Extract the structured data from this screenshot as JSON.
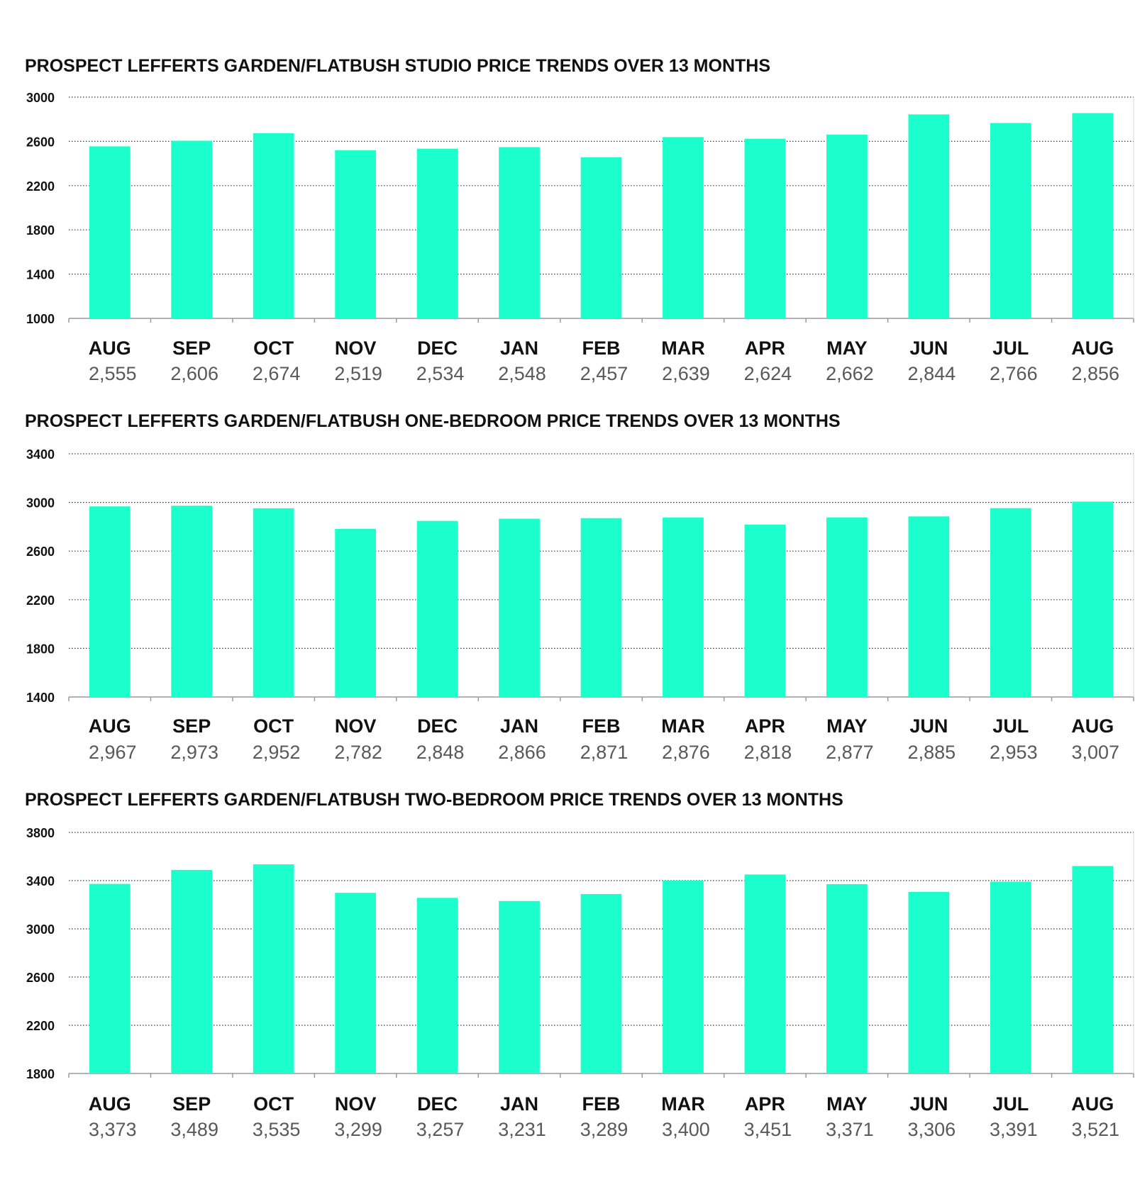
{
  "colors": {
    "bar": "#1cffcd",
    "grid": "#3a3a3a",
    "axis": "#9a9a9a",
    "title": "#111111",
    "value_label": "#595959"
  },
  "chart_data": [
    {
      "type": "bar",
      "title": "PROSPECT LEFFERTS GARDEN/FLATBUSH STUDIO PRICE TRENDS OVER 13 MONTHS",
      "categories": [
        "AUG",
        "SEP",
        "OCT",
        "NOV",
        "DEC",
        "JAN",
        "FEB",
        "MAR",
        "APR",
        "MAY",
        "JUN",
        "JUL",
        "AUG"
      ],
      "values": [
        2555,
        2606,
        2674,
        2519,
        2534,
        2548,
        2457,
        2639,
        2624,
        2662,
        2844,
        2766,
        2856
      ],
      "value_labels": [
        "2,555",
        "2,606",
        "2,674",
        "2,519",
        "2,534",
        "2,548",
        "2,457",
        "2,639",
        "2,624",
        "2,662",
        "2,844",
        "2,766",
        "2,856"
      ],
      "ylim": [
        1000,
        3000
      ],
      "yticks": [
        1000,
        1400,
        1800,
        2200,
        2600,
        3000
      ],
      "grid": true,
      "grid_style": "dotted"
    },
    {
      "type": "bar",
      "title": "PROSPECT LEFFERTS GARDEN/FLATBUSH ONE-BEDROOM PRICE TRENDS OVER 13 MONTHS",
      "categories": [
        "AUG",
        "SEP",
        "OCT",
        "NOV",
        "DEC",
        "JAN",
        "FEB",
        "MAR",
        "APR",
        "MAY",
        "JUN",
        "JUL",
        "AUG"
      ],
      "values": [
        2967,
        2973,
        2952,
        2782,
        2848,
        2866,
        2871,
        2876,
        2818,
        2877,
        2885,
        2953,
        3007
      ],
      "value_labels": [
        "2,967",
        "2,973",
        "2,952",
        "2,782",
        "2,848",
        "2,866",
        "2,871",
        "2,876",
        "2,818",
        "2,877",
        "2,885",
        "2,953",
        "3,007"
      ],
      "ylim": [
        1400,
        3400
      ],
      "yticks": [
        1400,
        1800,
        2200,
        2600,
        3000,
        3400
      ],
      "grid": true,
      "grid_style": "dotted"
    },
    {
      "type": "bar",
      "title": "PROSPECT LEFFERTS GARDEN/FLATBUSH TWO-BEDROOM PRICE TRENDS OVER 13 MONTHS",
      "categories": [
        "AUG",
        "SEP",
        "OCT",
        "NOV",
        "DEC",
        "JAN",
        "FEB",
        "MAR",
        "APR",
        "MAY",
        "JUN",
        "JUL",
        "AUG"
      ],
      "values": [
        3373,
        3489,
        3535,
        3299,
        3257,
        3231,
        3289,
        3400,
        3451,
        3371,
        3306,
        3391,
        3521
      ],
      "value_labels": [
        "3,373",
        "3,489",
        "3,535",
        "3,299",
        "3,257",
        "3,231",
        "3,289",
        "3,400",
        "3,451",
        "3,371",
        "3,306",
        "3,391",
        "3,521"
      ],
      "ylim": [
        1800,
        3800
      ],
      "yticks": [
        1800,
        2200,
        2600,
        3000,
        3400,
        3800
      ],
      "grid": true,
      "grid_style": "dotted"
    }
  ]
}
